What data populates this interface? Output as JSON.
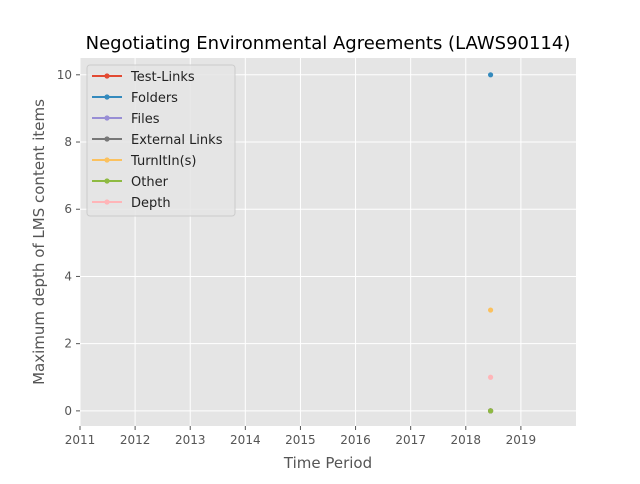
{
  "chart_data": {
    "type": "scatter",
    "title": "Negotiating Environmental Agreements (LAWS90114)",
    "xlabel": "Time Period",
    "ylabel": "Maximum depth of LMS content items",
    "xlim": [
      2011,
      2020
    ],
    "ylim": [
      -0.45,
      10.5
    ],
    "x_ticks": [
      "2011",
      "2012",
      "2013",
      "2014",
      "2015",
      "2016",
      "2017",
      "2018",
      "2019"
    ],
    "y_ticks": [
      "0",
      "2",
      "4",
      "6",
      "8",
      "10"
    ],
    "grid": true,
    "legend_position": "top-left",
    "series": [
      {
        "name": "Test-Links",
        "color": "#E24A33",
        "points": [
          [
            2018.45,
            0
          ]
        ]
      },
      {
        "name": "Folders",
        "color": "#348ABD",
        "points": [
          [
            2018.45,
            10
          ]
        ]
      },
      {
        "name": "Files",
        "color": "#988ED5",
        "points": [
          [
            2018.45,
            0
          ]
        ]
      },
      {
        "name": "External Links",
        "color": "#777777",
        "points": [
          [
            2018.45,
            0
          ]
        ]
      },
      {
        "name": "TurnItIn(s)",
        "color": "#FBC15E",
        "points": [
          [
            2018.45,
            3
          ]
        ]
      },
      {
        "name": "Other",
        "color": "#8EBA42",
        "points": [
          [
            2018.45,
            0
          ]
        ]
      },
      {
        "name": "Depth",
        "color": "#FFB5B8",
        "points": [
          [
            2018.45,
            1
          ]
        ]
      }
    ]
  }
}
